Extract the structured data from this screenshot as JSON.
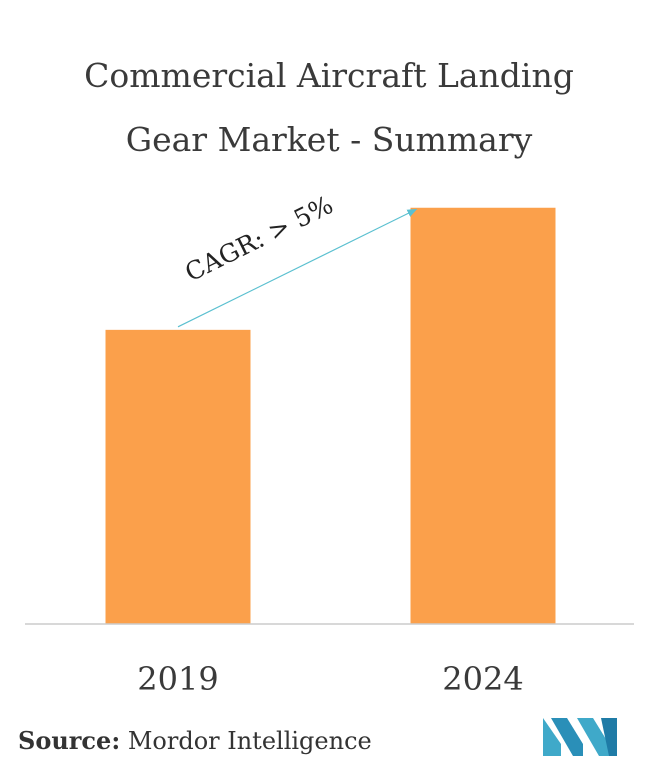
{
  "title_lines": [
    "Commercial Aircraft Landing",
    "Gear Market - Summary"
  ],
  "chart_data": {
    "type": "bar",
    "title": "Commercial Aircraft Landing Gear Market - Summary",
    "categories": [
      "2019",
      "2024"
    ],
    "values": [
      53,
      75
    ],
    "ylim": [
      0,
      80
    ],
    "annotation": "CAGR: > 5%",
    "grid": false,
    "legend": "none",
    "colors": {
      "bar": "#FBA04B",
      "arrow": "#5BC0D0",
      "axis": "#cccccc"
    }
  },
  "source": {
    "label": "Source:",
    "text": "Mordor Intelligence"
  },
  "logo": {
    "icon": "mordor-intelligence-logo-icon",
    "colors": [
      "#3FA9C9",
      "#1F7BA6"
    ]
  }
}
